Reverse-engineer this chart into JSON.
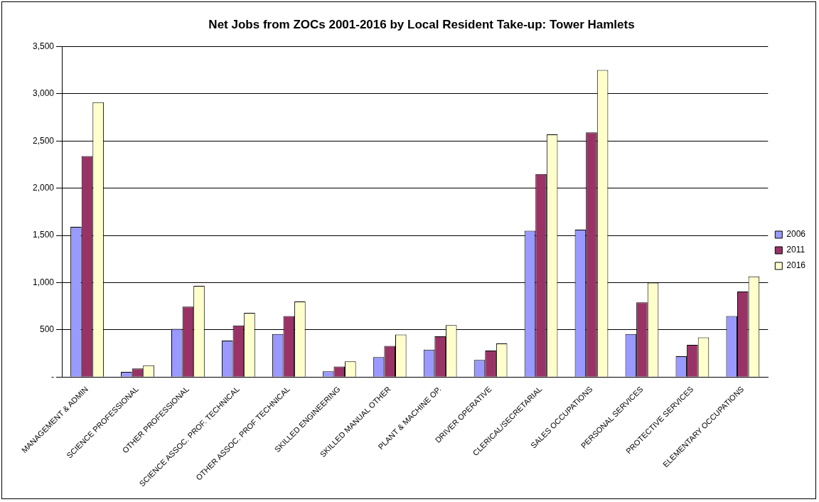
{
  "chart_data": {
    "type": "bar",
    "title": "Net Jobs from ZOCs 2001-2016 by Local Resident Take-up: Tower Hamlets",
    "categories": [
      "MANAGEMENT & ADMIN",
      "SCIENCE PROFESSIONAL",
      "OTHER PROFESSIONAL",
      "SCIENCE ASSOC. PROF. TECHNICAL",
      "OTHER ASSOC. PROF TECHNICAL",
      "SKILLED ENGINEERING",
      "SKILLED MANUAL OTHER",
      "PLANT & MACHINE OP.",
      "DRIVER OPERATIVE",
      "CLERICAL/SECRETARIAL",
      "SALES OCCUPATIONS",
      "PERSONAL SERVICES",
      "PROTECTIVE SERVICES",
      "ELEMENTARY OCCUPATIONS"
    ],
    "series": [
      {
        "name": "2006",
        "color": "#9999ff",
        "values": [
          1590,
          55,
          510,
          385,
          455,
          60,
          210,
          290,
          180,
          1550,
          1560,
          455,
          220,
          645
        ]
      },
      {
        "name": "2011",
        "color": "#993366",
        "values": [
          2340,
          90,
          745,
          545,
          645,
          110,
          330,
          430,
          280,
          2150,
          2590,
          790,
          340,
          905
        ]
      },
      {
        "name": "2016",
        "color": "#ffffcc",
        "values": [
          2910,
          125,
          965,
          680,
          800,
          165,
          450,
          550,
          355,
          2570,
          3250,
          1000,
          420,
          1065
        ]
      }
    ],
    "ylim": [
      0,
      3500
    ],
    "yticks": [
      {
        "value": 0,
        "label": "-"
      },
      {
        "value": 500,
        "label": "500"
      },
      {
        "value": 1000,
        "label": "1,000"
      },
      {
        "value": 1500,
        "label": "1,500"
      },
      {
        "value": 2000,
        "label": "2,000"
      },
      {
        "value": 2500,
        "label": "2,500"
      },
      {
        "value": 3000,
        "label": "3,000"
      },
      {
        "value": 3500,
        "label": "3,500"
      }
    ],
    "grid": "y",
    "legend": "right"
  }
}
